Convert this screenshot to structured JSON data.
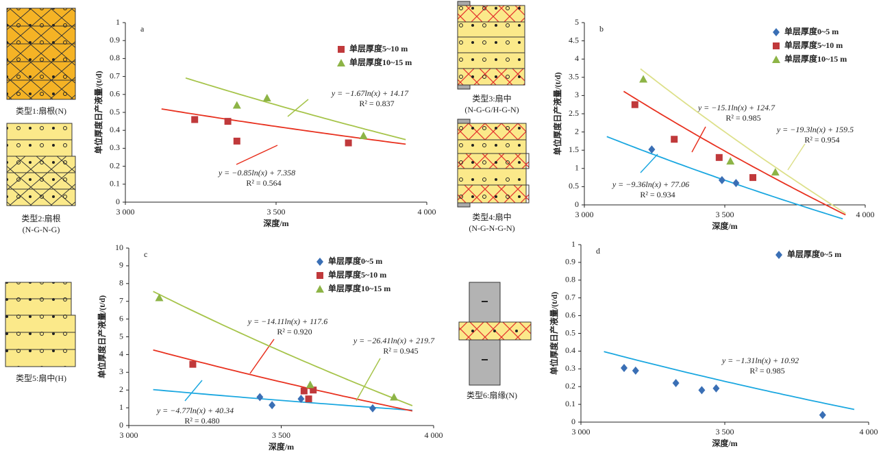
{
  "chart_data": [
    {
      "type": "scatter",
      "panel": "a",
      "xlabel": "深度/m",
      "ylabel": "单位厚度日产液量/(t/d)",
      "xlim": [
        3000,
        4000
      ],
      "xticks": [
        {
          "value": 3000,
          "label": "3 000"
        },
        {
          "value": 3500,
          "label": "3 500"
        },
        {
          "value": 4000,
          "label": "4 000"
        }
      ],
      "ylim": [
        0,
        1
      ],
      "yticks": [
        0,
        0.1,
        0.2,
        0.3,
        0.4,
        0.5,
        0.6,
        0.7,
        0.8,
        0.9,
        1
      ],
      "grid": false,
      "series": [
        {
          "name": "单层厚度5~10 m",
          "color": "#c0393b",
          "marker": "square",
          "x": [
            3230,
            3340,
            3370,
            3740
          ],
          "values": [
            0.46,
            0.45,
            0.34,
            0.33
          ],
          "trendline": {
            "color": "#e8311f",
            "slope": -0.85,
            "intercept": 7.358,
            "x_range": [
              3120,
              3930
            ],
            "equation": "y = −0.85ln(x) + 7.358",
            "r2": "R² = 0.564"
          }
        },
        {
          "name": "单层厚度10~15 m",
          "color": "#8db446",
          "marker": "triangle",
          "x": [
            3370,
            3470,
            3790
          ],
          "values": [
            0.54,
            0.58,
            0.37
          ],
          "trendline": {
            "color": "#a6c44a",
            "slope": -1.67,
            "intercept": 14.17,
            "x_range": [
              3200,
              3930
            ],
            "equation": "y = −1.67ln(x) + 14.17",
            "r2": "R² = 0.837"
          }
        }
      ]
    },
    {
      "type": "scatter",
      "panel": "b",
      "xlabel": "深度/m",
      "ylabel": "单位厚度日产液量/(t/d)",
      "xlim": [
        3000,
        4000
      ],
      "xticks": [
        {
          "value": 3000,
          "label": "3 000"
        },
        {
          "value": 3500,
          "label": "3 500"
        },
        {
          "value": 4000,
          "label": "4 000"
        }
      ],
      "ylim": [
        0,
        5
      ],
      "yticks": [
        0,
        0.5,
        1,
        1.5,
        2,
        2.5,
        3,
        3.5,
        4,
        4.5,
        5
      ],
      "grid": false,
      "series": [
        {
          "name": "单层厚度0~5 m",
          "color": "#3a6fb5",
          "marker": "diamond",
          "x": [
            3240,
            3490,
            3540
          ],
          "values": [
            1.52,
            0.68,
            0.6
          ],
          "trendline": {
            "color": "#1aa7e0",
            "slope": -9.36,
            "intercept": 77.06,
            "x_range": [
              3080,
              3920
            ],
            "equation": "y = −9.36ln(x) + 77.06",
            "r2": "R² = 0.934"
          }
        },
        {
          "name": "单层厚度5~10 m",
          "color": "#c0393b",
          "marker": "square",
          "x": [
            3180,
            3320,
            3480,
            3600
          ],
          "values": [
            2.75,
            1.8,
            1.3,
            0.75
          ],
          "trendline": {
            "color": "#e8311f",
            "slope": -15.1,
            "intercept": 124.7,
            "x_range": [
              3140,
              3930
            ],
            "equation": "y = −15.1ln(x) + 124.7",
            "r2": "R² = 0.985"
          }
        },
        {
          "name": "单层厚度10~15 m",
          "color": "#8db446",
          "marker": "triangle",
          "x": [
            3210,
            3520,
            3680
          ],
          "values": [
            3.45,
            1.2,
            0.9
          ],
          "trendline": {
            "color": "#dde08a",
            "slope": -19.3,
            "intercept": 159.5,
            "x_range": [
              3200,
              3930
            ],
            "equation": "y = −19.3ln(x) + 159.5",
            "r2": "R² = 0.954"
          }
        }
      ]
    },
    {
      "type": "scatter",
      "panel": "c",
      "xlabel": "深度/m",
      "ylabel": "单位厚度日产液量/(t/d)",
      "xlim": [
        3000,
        4000
      ],
      "xticks": [
        {
          "value": 3000,
          "label": "3 000"
        },
        {
          "value": 3500,
          "label": "3 500"
        },
        {
          "value": 4000,
          "label": "4 000"
        }
      ],
      "ylim": [
        0,
        10
      ],
      "yticks": [
        0,
        1,
        2,
        3,
        4,
        5,
        6,
        7,
        8,
        9,
        10
      ],
      "grid": false,
      "series": [
        {
          "name": "单层厚度0~5 m",
          "color": "#3a6fb5",
          "marker": "diamond",
          "x": [
            3430,
            3470,
            3565,
            3800
          ],
          "values": [
            1.6,
            1.15,
            1.5,
            0.97
          ],
          "trendline": {
            "color": "#1aa7e0",
            "slope": -4.77,
            "intercept": 40.34,
            "x_range": [
              3080,
              3930
            ],
            "equation": "y = −4.77ln(x) + 40.34",
            "r2": "R² = 0.480"
          }
        },
        {
          "name": "单层厚度5~10 m",
          "color": "#c0393b",
          "marker": "square",
          "x": [
            3210,
            3575,
            3590,
            3605
          ],
          "values": [
            3.45,
            1.95,
            1.5,
            2.0
          ],
          "trendline": {
            "color": "#e8311f",
            "slope": -14.11,
            "intercept": 117.6,
            "x_range": [
              3080,
              3930
            ],
            "equation": "y = −14.11ln(x) + 117.6",
            "r2": "R² = 0.920"
          }
        },
        {
          "name": "单层厚度10~15 m",
          "color": "#8db446",
          "marker": "triangle",
          "x": [
            3100,
            3595,
            3870
          ],
          "values": [
            7.2,
            2.3,
            1.6
          ],
          "trendline": {
            "color": "#a6c44a",
            "slope": -26.41,
            "intercept": 219.7,
            "x_range": [
              3080,
              3930
            ],
            "equation": "y = −26.41ln(x) + 219.7",
            "r2": "R² = 0.945"
          }
        }
      ]
    },
    {
      "type": "scatter",
      "panel": "d",
      "xlabel": "深度/m",
      "ylabel": "单位厚度日产液量/(t/d)",
      "xlim": [
        3000,
        4000
      ],
      "xticks": [
        {
          "value": 3000,
          "label": "3 000"
        },
        {
          "value": 3500,
          "label": "3 500"
        },
        {
          "value": 4000,
          "label": "4 000"
        }
      ],
      "ylim": [
        0,
        1
      ],
      "yticks": [
        0,
        0.1,
        0.2,
        0.3,
        0.4,
        0.5,
        0.6,
        0.7,
        0.8,
        0.9,
        1
      ],
      "grid": false,
      "series": [
        {
          "name": "单层厚度0~5 m",
          "color": "#3a6fb5",
          "marker": "diamond",
          "x": [
            3150,
            3190,
            3330,
            3420,
            3470,
            3840
          ],
          "values": [
            0.305,
            0.29,
            0.22,
            0.18,
            0.19,
            0.04
          ],
          "trendline": {
            "color": "#1aa7e0",
            "slope": -1.31,
            "intercept": 10.92,
            "x_range": [
              3080,
              3950
            ],
            "equation": "y = −1.31ln(x) + 10.92",
            "r2": "R² = 0.985"
          }
        }
      ]
    }
  ],
  "lithology": {
    "labels": [
      "类型1:扇根(N)",
      "类型2:扇根",
      "(N-G-N-G)",
      "类型3:扇中",
      "(N-G-G/H-G-N)",
      "类型4:扇中",
      "(N-G-N-G-N)",
      "类型5:扇中(H)",
      "类型6:扇缘(N)"
    ]
  }
}
